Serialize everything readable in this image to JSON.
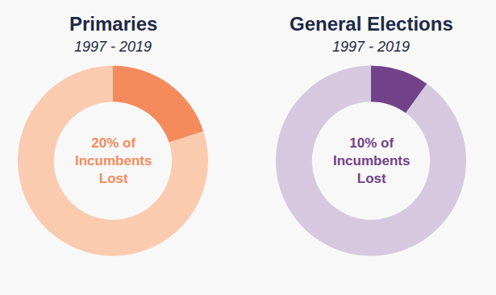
{
  "chart_data": [
    {
      "type": "pie",
      "title": "Primaries",
      "subtitle": "1997 - 2019",
      "values": [
        20,
        80
      ],
      "colors": [
        "#f58b5c",
        "#fbcbb0"
      ],
      "annotation": "20% of\nIncumbents\nLost",
      "data_labels": false
    },
    {
      "type": "pie",
      "title": "General Elections",
      "subtitle": "1997 - 2019",
      "values": [
        10,
        90
      ],
      "colors": [
        "#71428a",
        "#d6c9df"
      ],
      "annotation": "10% of\nIncumbents\nLost",
      "data_labels": false
    }
  ]
}
